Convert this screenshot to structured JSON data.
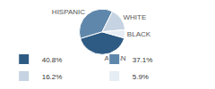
{
  "chart_data": {
    "type": "pie",
    "categories": [
      "ASIAN",
      "HISPANIC",
      "WHITE",
      "BLACK"
    ],
    "values": [
      40.8,
      37.1,
      16.2,
      5.9
    ],
    "value_labels": [
      "40.8%",
      "37.1%",
      "16.2%",
      "5.9%"
    ],
    "colors": [
      "#2e5b84",
      "#5f87ab",
      "#c5d3e2",
      "#e6edf4"
    ],
    "legend": "bottom"
  }
}
